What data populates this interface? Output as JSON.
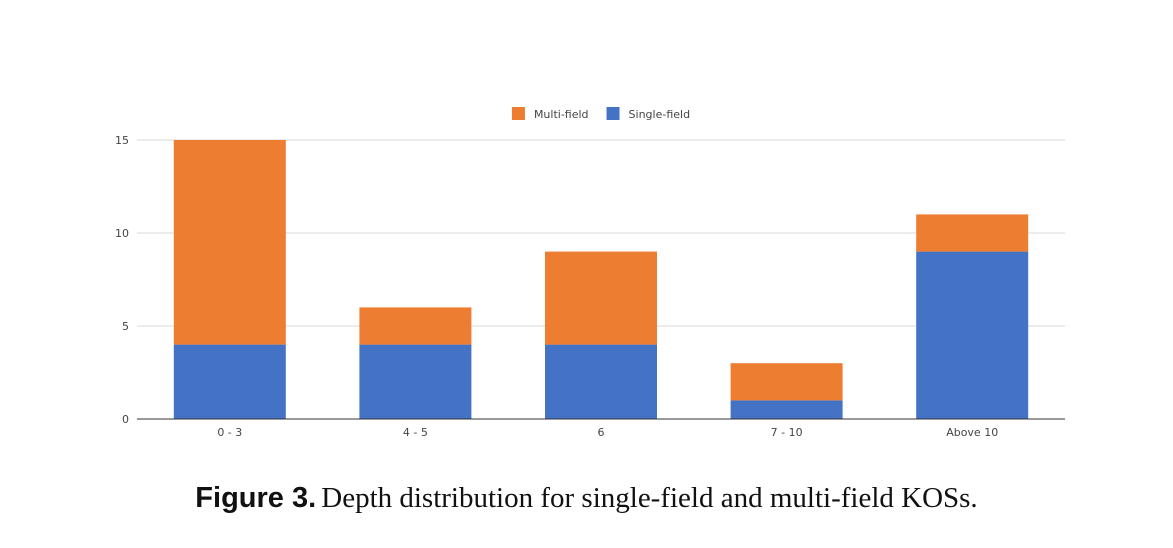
{
  "chart_data": {
    "type": "bar",
    "stacked": true,
    "categories": [
      "0 - 3",
      "4 - 5",
      "6",
      "7 - 10",
      "Above 10"
    ],
    "series": [
      {
        "name": "Single-field",
        "values": [
          4,
          4,
          4,
          1,
          9
        ],
        "color": "#4472c4"
      },
      {
        "name": "Multi-field",
        "values": [
          11,
          2,
          5,
          2,
          2
        ],
        "color": "#ed7d31"
      }
    ],
    "legend_order": [
      "Multi-field",
      "Single-field"
    ],
    "legend_position": "top-center",
    "xlabel": "",
    "ylabel": "",
    "ylim": [
      0,
      15
    ],
    "yticks": [
      0,
      5,
      10,
      15
    ],
    "grid": true
  },
  "caption": {
    "label": "Figure 3.",
    "text": "Depth distribution for single-field and multi-field KOSs."
  }
}
